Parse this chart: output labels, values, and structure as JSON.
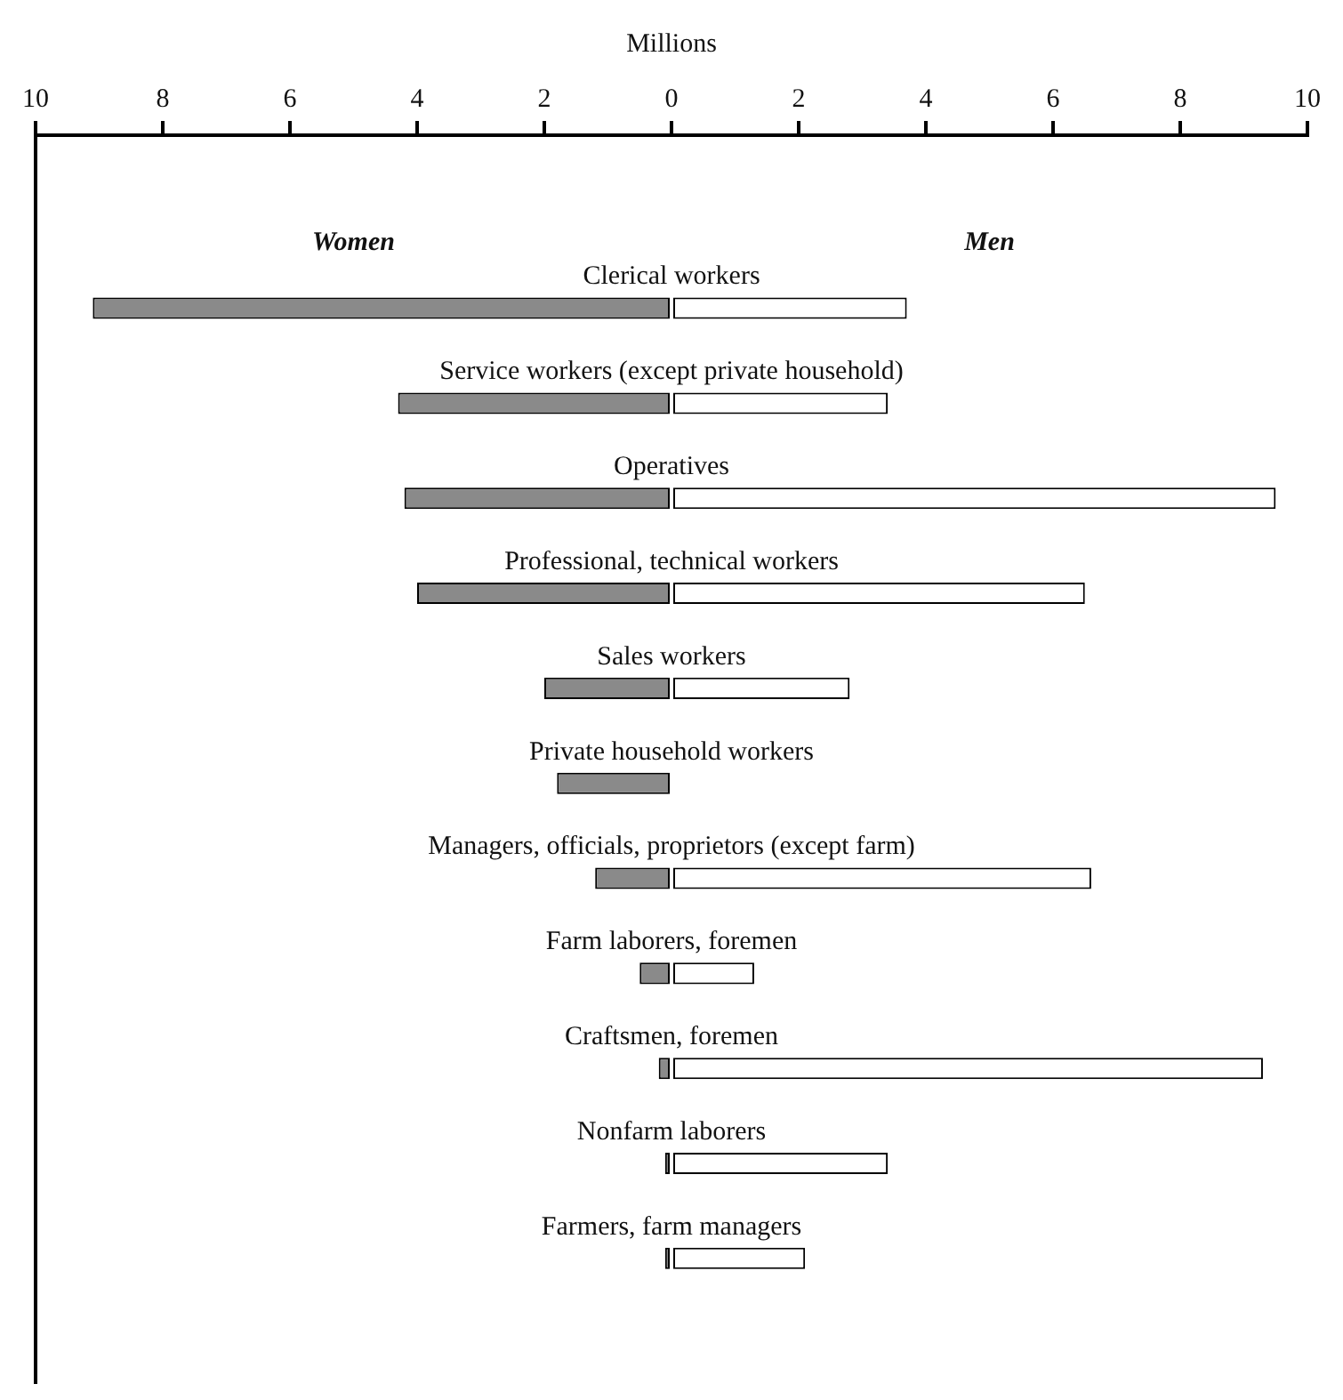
{
  "chart_data": {
    "type": "bar",
    "orientation": "horizontal",
    "stacked": true,
    "xlabel": "Millions",
    "categories": [
      "Clerical workers",
      "Service workers (except private household)",
      "Operatives",
      "Professional, technical workers",
      "Sales workers",
      "Private household workers",
      "Managers, officials, proprietors (except farm)",
      "Farm laborers, foremen",
      "Craftsmen, foremen",
      "Nonfarm laborers",
      "Farmers, farm managers"
    ],
    "series": [
      {
        "name": "Women",
        "color": "#8a8a8a",
        "values": [
          -9.1,
          -4.3,
          -4.2,
          -4.0,
          -2.0,
          -1.8,
          -1.2,
          -0.5,
          -0.2,
          -0.1,
          -0.1
        ]
      },
      {
        "name": "Men",
        "color": "#ffffff",
        "values": [
          3.7,
          3.4,
          9.5,
          6.5,
          2.8,
          0,
          6.6,
          1.3,
          9.3,
          3.4,
          2.1
        ]
      }
    ],
    "xlim": [
      -10,
      10
    ],
    "xticks": [
      {
        "value": -10,
        "label": "10"
      },
      {
        "value": -8,
        "label": "8"
      },
      {
        "value": -6,
        "label": "6"
      },
      {
        "value": -4,
        "label": "4"
      },
      {
        "value": -2,
        "label": "2"
      },
      0,
      2,
      4,
      6,
      8,
      10
    ],
    "grid": false,
    "legend": false
  }
}
